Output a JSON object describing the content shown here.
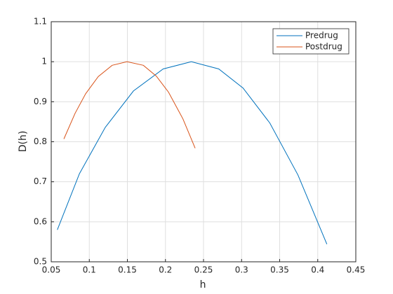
{
  "chart_data": {
    "type": "line",
    "xlabel": "h",
    "ylabel": "D(h)",
    "xlim": [
      0.05,
      0.45
    ],
    "xticks": [
      0.05,
      0.1,
      0.15,
      0.2,
      0.25,
      0.3,
      0.35,
      0.4,
      0.45
    ],
    "ylim": [
      0.5,
      1.1
    ],
    "yticks": [
      0.5,
      0.6,
      0.7,
      0.8,
      0.9,
      1,
      1.1
    ],
    "grid": true,
    "legend": "northeast",
    "series": [
      {
        "name": "Predrug",
        "color": "#0072bd",
        "x": [
          0.058,
          0.087,
          0.121,
          0.158,
          0.197,
          0.234,
          0.27,
          0.302,
          0.337,
          0.374,
          0.412
        ],
        "values": [
          0.58,
          0.72,
          0.836,
          0.927,
          0.982,
          1.0,
          0.982,
          0.934,
          0.847,
          0.717,
          0.544
        ]
      },
      {
        "name": "Postdrug",
        "color": "#d95319",
        "x": [
          0.0666,
          0.0813,
          0.0952,
          0.1118,
          0.13,
          0.1495,
          0.171,
          0.188,
          0.204,
          0.223,
          0.239
        ],
        "values": [
          0.807,
          0.871,
          0.92,
          0.963,
          0.991,
          1.0,
          0.991,
          0.964,
          0.924,
          0.857,
          0.784
        ]
      }
    ]
  }
}
